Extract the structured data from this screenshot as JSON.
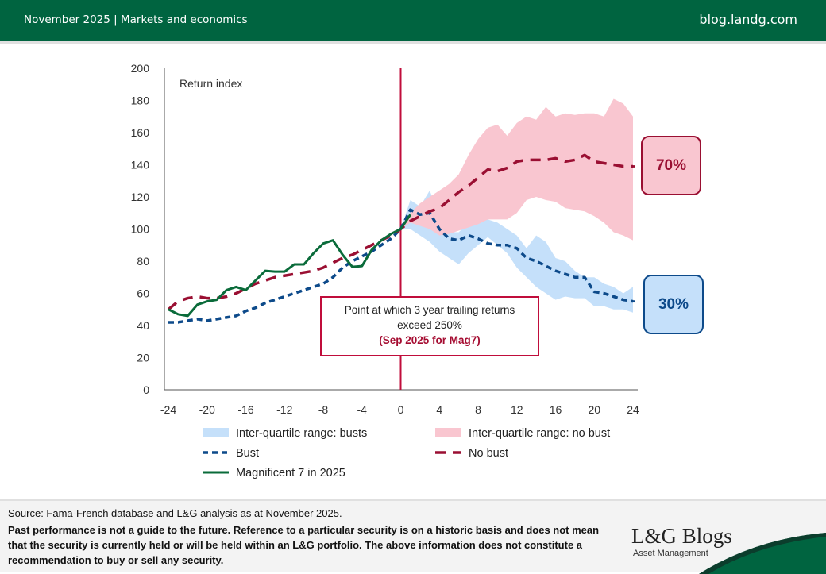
{
  "header": {
    "left_text": "November 2025 | Markets and economics",
    "right_text": "blog.landg.com"
  },
  "colors": {
    "brand_green": "#006440",
    "bust": "#0d4a8a",
    "no_bust": "#9a0f32",
    "mag7": "#0a6b3a",
    "bust_band": "#c5e0fa",
    "no_bust_band": "#f9c6d0",
    "marker_line": "#c00d3b"
  },
  "chart_data": {
    "type": "line",
    "title": "",
    "ylabel": "Return index",
    "xlabel": "",
    "xlim": [
      -24,
      24
    ],
    "ylim": [
      0,
      200
    ],
    "xticks": [
      -24,
      -20,
      -16,
      -12,
      -8,
      -4,
      0,
      4,
      8,
      12,
      16,
      20,
      24
    ],
    "yticks": [
      0,
      20,
      40,
      60,
      80,
      100,
      120,
      140,
      160,
      180,
      200
    ],
    "grid": false,
    "legend_position": "bottom",
    "vertical_marker_x": 0,
    "bands": [
      {
        "name": "Inter-quartile range: busts",
        "x": [
          0,
          1,
          2,
          3,
          4,
          5,
          6,
          7,
          8,
          9,
          10,
          11,
          12,
          13,
          14,
          15,
          16,
          17,
          18,
          19,
          20,
          21,
          22,
          23,
          24
        ],
        "lower": [
          100,
          100,
          96,
          92,
          86,
          82,
          78,
          85,
          90,
          95,
          90,
          85,
          76,
          70,
          64,
          60,
          56,
          58,
          57,
          57,
          52,
          52,
          50,
          50,
          48
        ],
        "upper": [
          100,
          118,
          114,
          124,
          108,
          98,
          98,
          104,
          106,
          106,
          104,
          100,
          96,
          88,
          96,
          92,
          82,
          80,
          74,
          70,
          70,
          66,
          64,
          60,
          64
        ]
      },
      {
        "name": "Inter-quartile range: no bust",
        "x": [
          0,
          1,
          2,
          3,
          4,
          5,
          6,
          7,
          8,
          9,
          10,
          11,
          12,
          13,
          14,
          15,
          16,
          17,
          18,
          19,
          20,
          21,
          22,
          23,
          24
        ],
        "lower": [
          100,
          104,
          102,
          100,
          96,
          97,
          99,
          101,
          103,
          106,
          106,
          106,
          110,
          118,
          120,
          118,
          117,
          113,
          112,
          111,
          108,
          104,
          98,
          96,
          93
        ],
        "upper": [
          100,
          110,
          116,
          120,
          124,
          128,
          134,
          146,
          156,
          163,
          165,
          158,
          166,
          170,
          168,
          176,
          170,
          172,
          171,
          172,
          172,
          170,
          181,
          178,
          170
        ]
      }
    ],
    "series": [
      {
        "name": "Bust",
        "style": "dashed-short",
        "x": [
          -24,
          -23,
          -22,
          -21,
          -20,
          -19,
          -18,
          -17,
          -16,
          -15,
          -14,
          -13,
          -12,
          -11,
          -10,
          -9,
          -8,
          -7,
          -6,
          -5,
          -4,
          -3,
          -2,
          -1,
          0,
          1,
          2,
          3,
          4,
          5,
          6,
          7,
          8,
          9,
          10,
          11,
          12,
          13,
          14,
          15,
          16,
          17,
          18,
          19,
          20,
          21,
          22,
          23,
          24
        ],
        "values": [
          42,
          42,
          43,
          44,
          43,
          44,
          45,
          46,
          49,
          51,
          54,
          56,
          58,
          60,
          62,
          64,
          66,
          70,
          76,
          80,
          83,
          86,
          90,
          94,
          100,
          112,
          109,
          110,
          100,
          94,
          93,
          96,
          94,
          91,
          90,
          90,
          88,
          82,
          80,
          77,
          74,
          72,
          70,
          70,
          61,
          60,
          58,
          56,
          55
        ]
      },
      {
        "name": "No bust",
        "style": "dashed-long",
        "x": [
          -24,
          -23,
          -22,
          -21,
          -20,
          -19,
          -18,
          -17,
          -16,
          -15,
          -14,
          -13,
          -12,
          -11,
          -10,
          -9,
          -8,
          -7,
          -6,
          -5,
          -4,
          -3,
          -2,
          -1,
          0,
          1,
          2,
          3,
          4,
          5,
          6,
          7,
          8,
          9,
          10,
          11,
          12,
          13,
          14,
          15,
          16,
          17,
          18,
          19,
          20,
          21,
          22,
          23,
          24
        ],
        "values": [
          50,
          55,
          57,
          58,
          57,
          57,
          58,
          60,
          63,
          66,
          68,
          70,
          71,
          72,
          73,
          74,
          76,
          79,
          82,
          84,
          87,
          90,
          93,
          96,
          100,
          105,
          108,
          111,
          113,
          118,
          123,
          127,
          132,
          137,
          136,
          138,
          142,
          143,
          143,
          143,
          144,
          142,
          143,
          146,
          142,
          141,
          140,
          139,
          139
        ]
      },
      {
        "name": "Magnificent 7 in 2025",
        "style": "solid",
        "x": [
          -24,
          -23,
          -22,
          -21,
          -20,
          -19,
          -18,
          -17,
          -16,
          -15,
          -14,
          -13,
          -12,
          -11,
          -10,
          -9,
          -8,
          -7,
          -6,
          -5,
          -4,
          -3,
          -2,
          -1,
          0,
          1
        ],
        "values": [
          50,
          47,
          46,
          53,
          55,
          56,
          62,
          64,
          62,
          68,
          74,
          73.5,
          73.5,
          78,
          78,
          85,
          91,
          93,
          84,
          76.5,
          77,
          87,
          93,
          97,
          100,
          109
        ]
      }
    ],
    "annotations": [
      {
        "text_lines": [
          "Point at which 3 year trailing returns",
          "exceed 250%"
        ],
        "highlight": "(Sep 2025 for Mag7)"
      },
      {
        "label": "70%",
        "refers_to": "No bust"
      },
      {
        "label": "30%",
        "refers_to": "Bust"
      }
    ]
  },
  "legend": [
    {
      "label": "Inter-quartile range: busts",
      "kind": "band-bust"
    },
    {
      "label": "Inter-quartile range: no bust",
      "kind": "band-nobust"
    },
    {
      "label": "Bust",
      "kind": "line-bust"
    },
    {
      "label": "No bust",
      "kind": "line-nobust"
    },
    {
      "label": "Magnificent 7 in 2025",
      "kind": "line-mag7"
    }
  ],
  "footer": {
    "source": "Source: Fama-French database and L&G analysis as at November 2025.",
    "disclaimer": "Past performance is not a guide to the future. Reference to a particular security is on a historic basis and does not mean that the security is currently held or will be held within an L&G portfolio. The above information does not constitute a recommendation to buy or sell any security.",
    "logo_title": "L&G Blogs",
    "logo_subtitle": "Asset Management"
  }
}
